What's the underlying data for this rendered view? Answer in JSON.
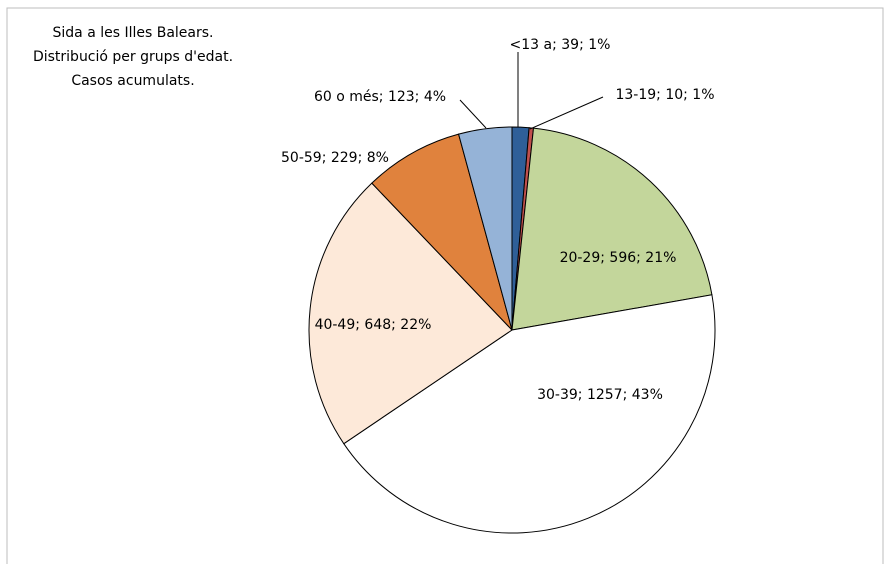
{
  "chart_data": {
    "type": "pie",
    "title": [
      "Sida a les Illes Balears.",
      "Distribució per grups d'edat.",
      "Casos acumulats."
    ],
    "categories": [
      "<13 a",
      "13-19",
      "20-29",
      "30-39",
      "40-49",
      "50-59",
      "60 o més"
    ],
    "values": [
      39,
      10,
      596,
      1257,
      648,
      229,
      123
    ],
    "value_labels": [
      "<13 a; 39; 1%",
      "13-19; 10; 1%",
      "20-29; 596; 21%",
      "30-39; 1257; 43%",
      "40-49; 648; 22%",
      "50-59; 229; 8%",
      "60 o més; 123; 4%"
    ],
    "colors": [
      "#2f5f98",
      "#c0504d",
      "#c3d69b",
      "#ffffff",
      "#fde9d9",
      "#e0823d",
      "#95b3d7"
    ]
  }
}
